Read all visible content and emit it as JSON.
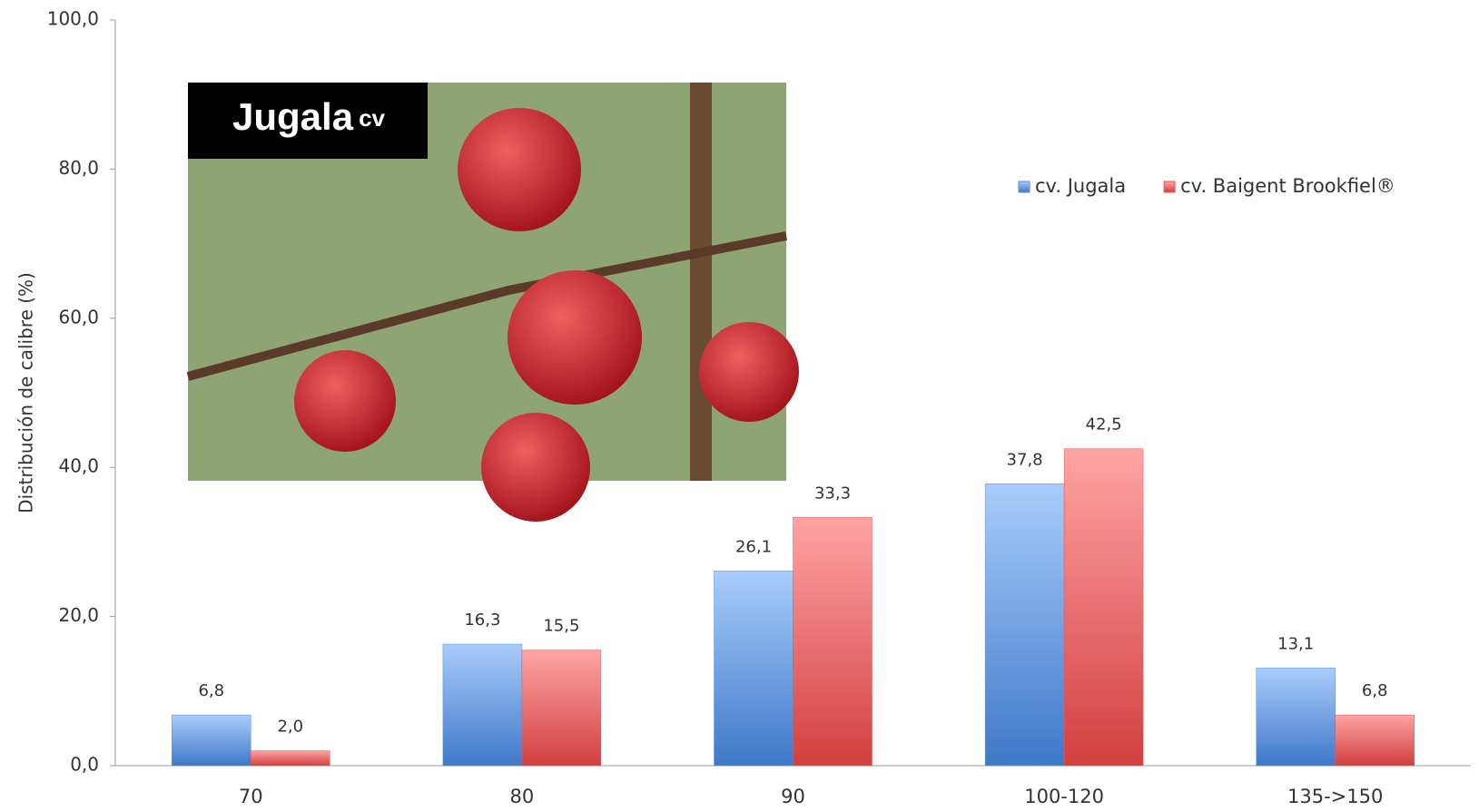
{
  "chart_data": {
    "type": "bar",
    "y_label": "Distribución de calibre (%)",
    "categories": [
      "70",
      "80",
      "90",
      "100-120",
      "135->150"
    ],
    "series": [
      {
        "name": "cv. Jugala",
        "color": "#5b8fd9",
        "values": [
          6.8,
          16.3,
          26.1,
          37.8,
          13.1
        ],
        "value_labels": [
          "6,8",
          "16,3",
          "26,1",
          "37,8",
          "13,1"
        ]
      },
      {
        "name": "cv. Baigent Brookfiel®",
        "color": "#e05a5a",
        "values": [
          2.0,
          15.5,
          33.3,
          42.5,
          6.8
        ],
        "value_labels": [
          "2,0",
          "15,5",
          "33,3",
          "42,5",
          "6,8"
        ]
      }
    ],
    "ylim": [
      0,
      100
    ],
    "yticks": [
      {
        "value": 0,
        "label": "0,0"
      },
      {
        "value": 20,
        "label": "20,0"
      },
      {
        "value": 40,
        "label": "40,0"
      },
      {
        "value": 60,
        "label": "60,0"
      },
      {
        "value": 80,
        "label": "80,0"
      },
      {
        "value": 100,
        "label": "100,0"
      }
    ],
    "legend": "top-right",
    "image_title": "Jugala",
    "image_subtitle": "cv"
  }
}
